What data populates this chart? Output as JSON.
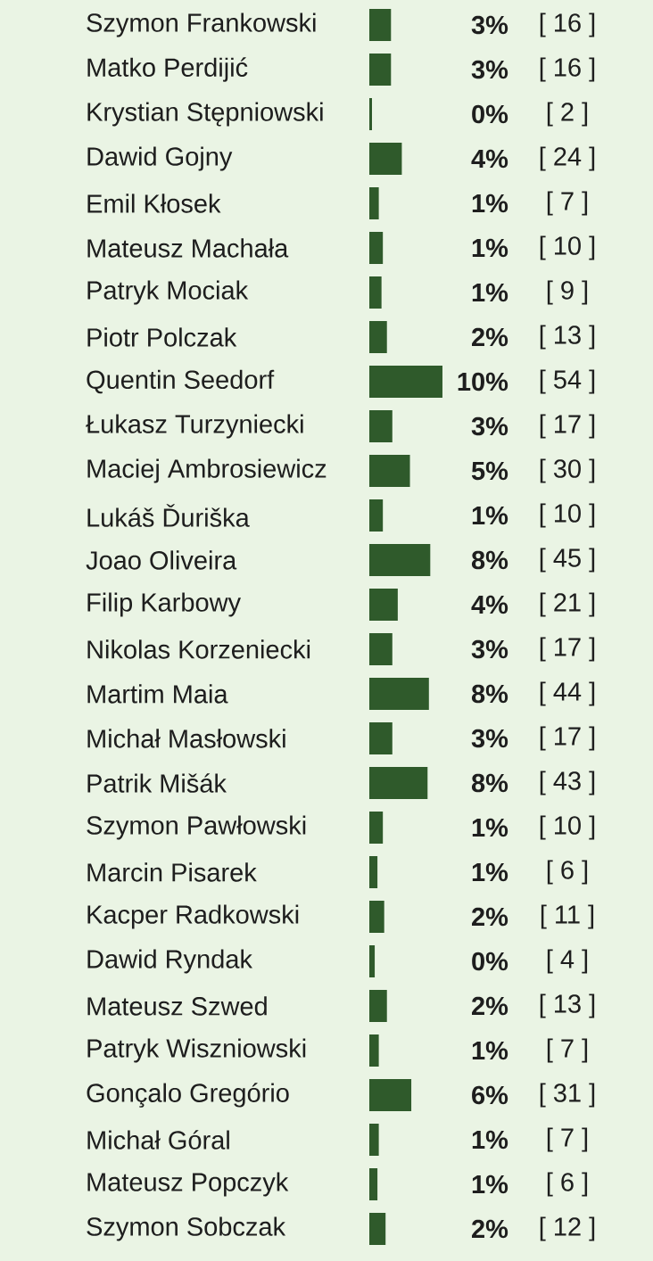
{
  "chart_data": {
    "type": "bar",
    "orientation": "horizontal",
    "color": "#2f5a2b",
    "categories": [
      "Szymon Frankowski",
      "Matko Perdijić",
      "Krystian Stępniowski",
      "Dawid Gojny",
      "Emil Kłosek",
      "Mateusz Machała",
      "Patryk Mociak",
      "Piotr Polczak",
      "Quentin Seedorf",
      "Łukasz Turzyniecki",
      "Maciej Ambrosiewicz",
      "Lukáš Ďuriška",
      "Joao Oliveira",
      "Filip Karbowy",
      "Nikolas Korzeniecki",
      "Martim Maia",
      "Michał Masłowski",
      "Patrik Mišák",
      "Szymon Pawłowski",
      "Marcin Pisarek",
      "Kacper Radkowski",
      "Dawid Ryndak",
      "Mateusz Szwed",
      "Patryk Wiszniowski",
      "Gonçalo Gregório",
      "Michał Góral",
      "Mateusz Popczyk",
      "Szymon Sobczak"
    ],
    "values": [
      16,
      16,
      2,
      24,
      7,
      10,
      9,
      13,
      54,
      17,
      30,
      10,
      45,
      21,
      17,
      44,
      17,
      43,
      10,
      6,
      11,
      4,
      13,
      7,
      31,
      7,
      6,
      12
    ],
    "value_labels": [
      "[ 16 ]",
      "[ 16 ]",
      "[ 2 ]",
      "[ 24 ]",
      "[ 7 ]",
      "[ 10 ]",
      "[ 9 ]",
      "[ 13 ]",
      "[ 54 ]",
      "[ 17 ]",
      "[ 30 ]",
      "[ 10 ]",
      "[ 45 ]",
      "[ 21 ]",
      "[ 17 ]",
      "[ 44 ]",
      "[ 17 ]",
      "[ 43 ]",
      "[ 10 ]",
      "[ 6 ]",
      "[ 11 ]",
      "[ 4 ]",
      "[ 13 ]",
      "[ 7 ]",
      "[ 31 ]",
      "[ 7 ]",
      "[ 6 ]",
      "[ 12 ]"
    ],
    "annotations": [
      "3%",
      "3%",
      "0%",
      "4%",
      "1%",
      "1%",
      "1%",
      "2%",
      "10%",
      "3%",
      "5%",
      "1%",
      "8%",
      "4%",
      "3%",
      "8%",
      "3%",
      "8%",
      "1%",
      "1%",
      "2%",
      "0%",
      "2%",
      "1%",
      "6%",
      "1%",
      "1%",
      "2%"
    ]
  }
}
